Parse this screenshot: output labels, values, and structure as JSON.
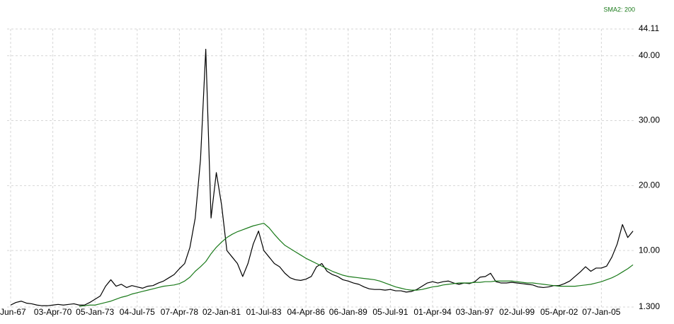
{
  "chart_data": {
    "type": "line",
    "categories": [
      "Jun-67",
      null,
      null,
      null,
      null,
      null,
      null,
      null,
      "03-Apr-70",
      null,
      null,
      null,
      null,
      null,
      null,
      null,
      "05-Jan-73",
      null,
      null,
      null,
      null,
      null,
      null,
      null,
      "04-Jul-75",
      null,
      null,
      null,
      null,
      null,
      null,
      null,
      "07-Apr-78",
      null,
      null,
      null,
      null,
      null,
      null,
      null,
      "02-Jan-81",
      null,
      null,
      null,
      null,
      null,
      null,
      null,
      "01-Jul-83",
      null,
      null,
      null,
      null,
      null,
      null,
      null,
      "04-Apr-86",
      null,
      null,
      null,
      null,
      null,
      null,
      null,
      "06-Jan-89",
      null,
      null,
      null,
      null,
      null,
      null,
      null,
      "05-Jul-91",
      null,
      null,
      null,
      null,
      null,
      null,
      null,
      "01-Apr-94",
      null,
      null,
      null,
      null,
      null,
      null,
      null,
      "03-Jan-97",
      null,
      null,
      null,
      null,
      null,
      null,
      null,
      "02-Jul-99",
      null,
      null,
      null,
      null,
      null,
      null,
      null,
      "05-Apr-02",
      null,
      null,
      null,
      null,
      null,
      null,
      null,
      "07-Jan-05",
      null,
      null,
      null,
      null,
      null,
      null
    ],
    "series": [
      {
        "color": "#000000",
        "values": [
          1.6,
          2.0,
          2.2,
          1.9,
          1.8,
          1.6,
          1.5,
          1.5,
          1.6,
          1.7,
          1.6,
          1.7,
          1.8,
          1.6,
          1.6,
          2.0,
          2.5,
          3.0,
          4.5,
          5.5,
          4.5,
          4.8,
          4.3,
          4.6,
          4.4,
          4.2,
          4.5,
          4.6,
          5.0,
          5.3,
          5.8,
          6.3,
          7.2,
          8.0,
          10.5,
          15.0,
          24.0,
          41.0,
          15.0,
          22.0,
          17.0,
          10.0,
          9.0,
          8.0,
          6.0,
          8.0,
          11.0,
          13.0,
          10.0,
          9.0,
          8.0,
          7.5,
          6.5,
          5.8,
          5.5,
          5.4,
          5.6,
          6.0,
          7.5,
          8.0,
          6.8,
          6.3,
          6.0,
          5.5,
          5.3,
          5.0,
          4.8,
          4.4,
          4.1,
          4.0,
          4.0,
          3.9,
          4.0,
          3.8,
          3.8,
          3.6,
          3.7,
          4.0,
          4.5,
          5.0,
          5.2,
          5.0,
          5.2,
          5.3,
          5.0,
          4.8,
          5.0,
          4.9,
          5.2,
          5.9,
          6.0,
          6.5,
          5.2,
          5.0,
          5.0,
          5.1,
          5.0,
          4.9,
          4.8,
          4.7,
          4.4,
          4.3,
          4.4,
          4.6,
          4.6,
          4.9,
          5.3,
          6.0,
          6.7,
          7.5,
          6.8,
          7.3,
          7.3,
          7.6,
          9.0,
          11.0,
          14.0,
          12.0,
          13.0
        ]
      },
      {
        "name": "SMA2: 200",
        "color": "#1a7a1a",
        "values": [
          null,
          null,
          null,
          null,
          null,
          null,
          null,
          null,
          null,
          null,
          null,
          null,
          null,
          1.4,
          1.5,
          1.6,
          1.6,
          1.8,
          2.0,
          2.2,
          2.5,
          2.8,
          3.0,
          3.3,
          3.5,
          3.7,
          3.9,
          4.1,
          4.3,
          4.5,
          4.6,
          4.7,
          4.9,
          5.3,
          5.9,
          6.8,
          7.5,
          8.3,
          9.5,
          10.5,
          11.3,
          12.0,
          12.5,
          12.9,
          13.2,
          13.5,
          13.8,
          14.0,
          14.2,
          13.5,
          12.5,
          11.6,
          10.8,
          10.3,
          9.8,
          9.3,
          8.8,
          8.4,
          8.0,
          7.6,
          7.2,
          6.8,
          6.5,
          6.2,
          6.0,
          5.9,
          5.8,
          5.7,
          5.6,
          5.5,
          5.3,
          5.0,
          4.7,
          4.4,
          4.2,
          4.0,
          3.9,
          3.9,
          4.0,
          4.2,
          4.4,
          4.5,
          4.7,
          4.8,
          4.9,
          5.0,
          5.0,
          5.0,
          5.1,
          5.1,
          5.2,
          5.2,
          5.3,
          5.3,
          5.3,
          5.3,
          5.2,
          5.1,
          5.0,
          5.0,
          4.9,
          4.8,
          4.7,
          4.6,
          4.5,
          4.5,
          4.5,
          4.5,
          4.6,
          4.7,
          4.8,
          5.0,
          5.2,
          5.5,
          5.8,
          6.2,
          6.7,
          7.2,
          7.8
        ]
      }
    ],
    "ylim": [
      1.3,
      44.11
    ],
    "yticks": [
      {
        "value": 1.3,
        "label": "1.300"
      },
      {
        "value": 10,
        "label": "10.00"
      },
      {
        "value": 20,
        "label": "20.00"
      },
      {
        "value": 30,
        "label": "30.00"
      },
      {
        "value": 40,
        "label": "40.00"
      },
      {
        "value": 44.11,
        "label": "44.11"
      }
    ],
    "grid": true,
    "legend": "top-right"
  }
}
